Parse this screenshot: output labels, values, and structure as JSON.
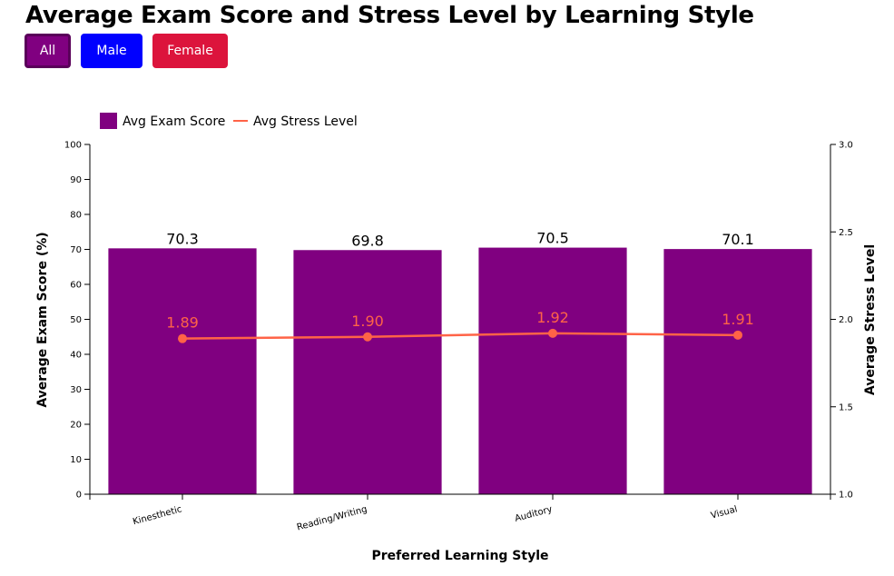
{
  "page": {
    "title": "Average Exam Score and Stress Level by Learning Style"
  },
  "filters": [
    {
      "label": "All",
      "color": "#800080",
      "active": true
    },
    {
      "label": "Male",
      "color": "#0000ff",
      "active": false
    },
    {
      "label": "Female",
      "color": "#dc143c",
      "active": false
    }
  ],
  "chart_data": {
    "type": "bar",
    "title": "Average Exam Score and Stress Level by Learning Style",
    "categories": [
      "Kinesthetic",
      "Reading/Writing",
      "Auditory",
      "Visual"
    ],
    "series": [
      {
        "name": "Avg Exam Score",
        "type": "bar",
        "axis": "left",
        "color": "#800080",
        "values": [
          70.3,
          69.8,
          70.5,
          70.1
        ],
        "labels": [
          "70.3",
          "69.8",
          "70.5",
          "70.1"
        ]
      },
      {
        "name": "Avg Stress Level",
        "type": "line",
        "axis": "right",
        "color": "#ff6347",
        "values": [
          1.89,
          1.9,
          1.92,
          1.91
        ],
        "labels": [
          "1.89",
          "1.90",
          "1.92",
          "1.91"
        ]
      }
    ],
    "xlabel": "Preferred Learning Style",
    "ylabel": "Average Exam Score (%)",
    "y2label": "Average Stress Level",
    "ylim": [
      0,
      100
    ],
    "y2lim": [
      1.0,
      3.0
    ],
    "yticks": [
      "0",
      "10",
      "20",
      "30",
      "40",
      "50",
      "60",
      "70",
      "80",
      "90",
      "100"
    ],
    "y2ticks": [
      "1.0",
      "1.5",
      "2.0",
      "2.5",
      "3.0"
    ],
    "grid": false,
    "legend": "top-left"
  }
}
